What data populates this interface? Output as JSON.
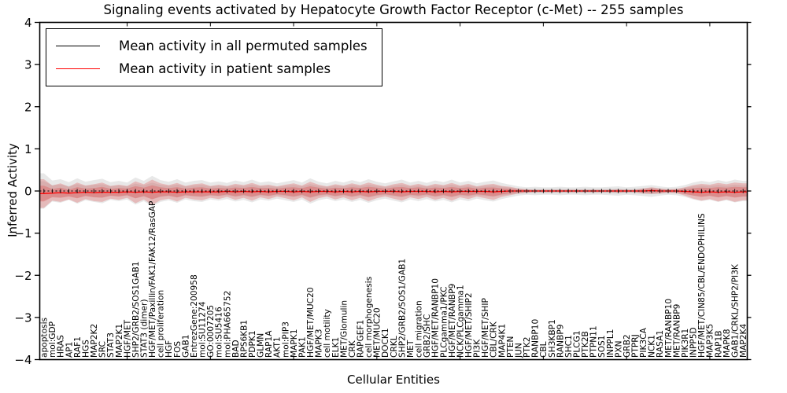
{
  "chart_title": "Signaling events activated by Hepatocyte Growth Factor Receptor (c-Met) -- 255 samples",
  "axes": {
    "x_label": "Cellular Entities",
    "y_label": "Inferred Activity"
  },
  "legend": {
    "items": [
      {
        "label": "Mean activity in all permuted samples",
        "color": "#000000"
      },
      {
        "label": "Mean activity in patient samples",
        "color": "#ff0000"
      }
    ]
  },
  "chart_data": {
    "type": "line",
    "title": "Signaling events activated by Hepatocyte Growth Factor Receptor (c-Met) -- 255 samples",
    "xlabel": "Cellular Entities",
    "ylabel": "Inferred Activity",
    "ylim": [
      -4,
      4
    ],
    "yticks": {
      "values": [
        4,
        3,
        2,
        1,
        0,
        -1,
        -2,
        -3,
        -4
      ],
      "labels": [
        "4",
        "3",
        "2",
        "1",
        "0",
        "−1",
        "−2",
        "−3",
        "−4"
      ]
    },
    "grid": false,
    "legend_position": "upper left",
    "categories": [
      "apoptosis",
      "mol:GDP",
      "HRAS",
      "AP1",
      "RAF1",
      "HGS",
      "MAP2K2",
      "SRC",
      "STAT3",
      "MAP2K1",
      "HGF/MET",
      "SHP2/GRB2/SOS1GAB1",
      "STAT3 (dimer)",
      "HGF/MET/Paxillin/FAK1/FAK12/RasGAP",
      "cell proliferation",
      "HGF",
      "FOS",
      "GAB1",
      "EntrezGene:200958",
      "mol:SU11274",
      "GO:0007205",
      "mol:SU5416",
      "mol:PHA665752",
      "BAD",
      "RPS6KB1",
      "PDPK1",
      "GLMN",
      "RAP1A",
      "AKT1",
      "mol:PIP3",
      "MAPK1",
      "PAK1",
      "HGF/MET/MUC20",
      "MAPK3",
      "cell motility",
      "ELK1",
      "MET/Glomulin",
      "CRK",
      "RAPGEF1",
      "cell morphogenesis",
      "MET/MUC20",
      "DOCK1",
      "CRKL",
      "SHP2/GRB2/SOS1/GAB1",
      "MET",
      "cell migration",
      "GRB2/SHC",
      "HGF/MET/RANBP10",
      "PLCgamma1/PKC",
      "HGF/MET/RANBP9",
      "NCK/PLCgamma1",
      "HGF/MET/SHIP2",
      "PI3K",
      "HGF/MET/SHIP",
      "CBL/CRK",
      "MAP4K1",
      "PTEN",
      "JUN",
      "PTK2",
      "RANBP10",
      "CBL",
      "SH3KBP1",
      "RANBP9",
      "SHC1",
      "PLCG1",
      "PTK2B",
      "PTPN11",
      "SOS1",
      "INPPL1",
      "PXN",
      "GRB2",
      "PTPRJ",
      "PIK3CA",
      "NCK1",
      "RASA1",
      "MET/RANBP10",
      "MET/RANBP9",
      "PIK3R1",
      "INPP5D",
      "HGF/MET/CIN85/CBL/ENDOPHILINS",
      "MAP3K5",
      "RAP1B",
      "MAPK8",
      "GAB1/CRKL/SHP2/PI3K",
      "MAP2K4"
    ],
    "series": [
      {
        "name": "Mean activity in all permuted samples",
        "color": "#000000",
        "style": "dashed",
        "values": [
          0,
          0,
          0,
          0,
          0,
          0,
          0,
          0,
          0,
          0,
          0,
          0,
          0,
          0,
          0,
          0,
          0,
          0,
          0,
          0,
          0,
          0,
          0,
          0,
          0,
          0,
          0,
          0,
          0,
          0,
          0,
          0,
          0,
          0,
          0,
          0,
          0,
          0,
          0,
          0,
          0,
          0,
          0,
          0,
          0,
          0,
          0,
          0,
          0,
          0,
          0,
          0,
          0,
          0,
          0,
          0,
          0,
          0,
          0,
          0,
          0,
          0,
          0,
          0,
          0,
          0,
          0,
          0,
          0,
          0,
          0,
          0,
          0,
          0,
          0,
          0,
          0,
          0,
          0,
          0,
          0,
          0,
          0,
          0,
          0
        ]
      },
      {
        "name": "Mean activity in patient samples",
        "color": "#ff0000",
        "style": "solid",
        "values": [
          -0.06,
          -0.05,
          -0.04,
          -0.05,
          -0.04,
          -0.03,
          -0.04,
          -0.03,
          -0.03,
          -0.03,
          -0.02,
          -0.03,
          -0.02,
          -0.03,
          -0.02,
          -0.02,
          -0.03,
          -0.02,
          -0.02,
          -0.02,
          -0.02,
          -0.02,
          -0.01,
          -0.02,
          -0.01,
          -0.02,
          -0.01,
          -0.02,
          -0.01,
          -0.01,
          -0.02,
          -0.01,
          -0.02,
          -0.01,
          -0.01,
          -0.02,
          -0.01,
          -0.02,
          -0.01,
          -0.02,
          -0.01,
          -0.01,
          -0.01,
          -0.02,
          -0.01,
          -0.01,
          -0.01,
          -0.02,
          -0.01,
          -0.02,
          -0.01,
          -0.01,
          -0.01,
          -0.01,
          -0.02,
          -0.01,
          0,
          0,
          0,
          0,
          0,
          0,
          0,
          0,
          0,
          0,
          0,
          0,
          0,
          0,
          0,
          0,
          0,
          0.01,
          0,
          0,
          0,
          -0.01,
          -0.02,
          -0.03,
          -0.02,
          -0.03,
          -0.02,
          -0.03,
          -0.02
        ]
      }
    ],
    "bands": [
      {
        "name": "permuted-samples-spread",
        "color": "#aaaaaa",
        "half_widths": [
          0.42,
          0.25,
          0.28,
          0.21,
          0.3,
          0.22,
          0.26,
          0.29,
          0.21,
          0.24,
          0.2,
          0.32,
          0.24,
          0.36,
          0.26,
          0.22,
          0.28,
          0.2,
          0.24,
          0.26,
          0.2,
          0.23,
          0.19,
          0.25,
          0.21,
          0.27,
          0.2,
          0.23,
          0.18,
          0.22,
          0.26,
          0.2,
          0.3,
          0.22,
          0.18,
          0.24,
          0.2,
          0.26,
          0.21,
          0.28,
          0.22,
          0.18,
          0.23,
          0.27,
          0.2,
          0.24,
          0.19,
          0.25,
          0.21,
          0.27,
          0.2,
          0.24,
          0.18,
          0.22,
          0.25,
          0.19,
          0.15,
          0.11,
          0.09,
          0.1,
          0.09,
          0.09,
          0.1,
          0.09,
          0.09,
          0.1,
          0.09,
          0.09,
          0.1,
          0.11,
          0.09,
          0.1,
          0.12,
          0.14,
          0.11,
          0.09,
          0.1,
          0.14,
          0.2,
          0.24,
          0.21,
          0.26,
          0.22,
          0.27,
          0.24
        ]
      },
      {
        "name": "patient-samples-spread",
        "color": "#dd4f4f",
        "half_widths": [
          0.34,
          0.18,
          0.22,
          0.15,
          0.24,
          0.16,
          0.2,
          0.23,
          0.15,
          0.18,
          0.14,
          0.26,
          0.18,
          0.3,
          0.2,
          0.16,
          0.22,
          0.14,
          0.18,
          0.2,
          0.14,
          0.17,
          0.13,
          0.19,
          0.15,
          0.21,
          0.14,
          0.17,
          0.12,
          0.16,
          0.2,
          0.14,
          0.24,
          0.16,
          0.12,
          0.18,
          0.14,
          0.2,
          0.15,
          0.22,
          0.16,
          0.12,
          0.17,
          0.21,
          0.14,
          0.18,
          0.13,
          0.19,
          0.15,
          0.21,
          0.14,
          0.18,
          0.12,
          0.16,
          0.19,
          0.13,
          0.1,
          0.06,
          0.04,
          0.03,
          0.03,
          0.03,
          0.03,
          0.03,
          0.03,
          0.03,
          0.03,
          0.03,
          0.03,
          0.04,
          0.03,
          0.03,
          0.06,
          0.08,
          0.06,
          0.04,
          0.05,
          0.1,
          0.16,
          0.2,
          0.17,
          0.22,
          0.18,
          0.23,
          0.2
        ]
      }
    ]
  }
}
